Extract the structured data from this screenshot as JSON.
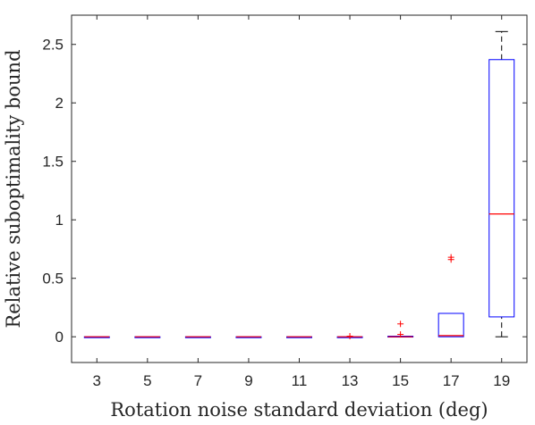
{
  "chart_data": {
    "type": "box",
    "xlabel": "Rotation noise standard deviation (deg)",
    "ylabel": "Relative suboptimality bound",
    "categories": [
      "3",
      "5",
      "7",
      "9",
      "11",
      "13",
      "15",
      "17",
      "19"
    ],
    "ylim": [
      -0.22,
      2.75
    ],
    "yticks": [
      0,
      0.5,
      1,
      1.5,
      2,
      2.5
    ],
    "ytick_labels": [
      "0",
      "0.5",
      "1",
      "1.5",
      "2",
      "2.5"
    ],
    "grid": false,
    "colors": {
      "box": "#0000ff",
      "median": "#ff0000",
      "whisker": "#000000",
      "outlier": "#ff0000",
      "axis": "#262626"
    },
    "boxes": [
      {
        "category": "3",
        "whisker_low": 0,
        "q1": 0,
        "median": 0,
        "q3": 0,
        "whisker_high": 0,
        "outliers": []
      },
      {
        "category": "5",
        "whisker_low": 0,
        "q1": 0,
        "median": 0,
        "q3": 0,
        "whisker_high": 0,
        "outliers": []
      },
      {
        "category": "7",
        "whisker_low": 0,
        "q1": 0,
        "median": 0,
        "q3": 0,
        "whisker_high": 0,
        "outliers": []
      },
      {
        "category": "9",
        "whisker_low": 0,
        "q1": 0,
        "median": 0,
        "q3": 0,
        "whisker_high": 0,
        "outliers": []
      },
      {
        "category": "11",
        "whisker_low": 0,
        "q1": 0,
        "median": 0,
        "q3": 0,
        "whisker_high": 0,
        "outliers": []
      },
      {
        "category": "13",
        "whisker_low": 0,
        "q1": 0,
        "median": 0,
        "q3": 0,
        "whisker_high": 0,
        "outliers": [
          0.005
        ]
      },
      {
        "category": "15",
        "whisker_low": 0,
        "q1": 0,
        "median": 0,
        "q3": 0.005,
        "whisker_high": 0.005,
        "outliers": [
          0.02,
          0.11
        ]
      },
      {
        "category": "17",
        "whisker_low": 0,
        "q1": 0,
        "median": 0.01,
        "q3": 0.2,
        "whisker_high": 0.2,
        "outliers": [
          0.66,
          0.68
        ]
      },
      {
        "category": "19",
        "whisker_low": 0,
        "q1": 0.17,
        "median": 1.05,
        "q3": 2.37,
        "whisker_high": 2.61,
        "outliers": []
      }
    ]
  }
}
